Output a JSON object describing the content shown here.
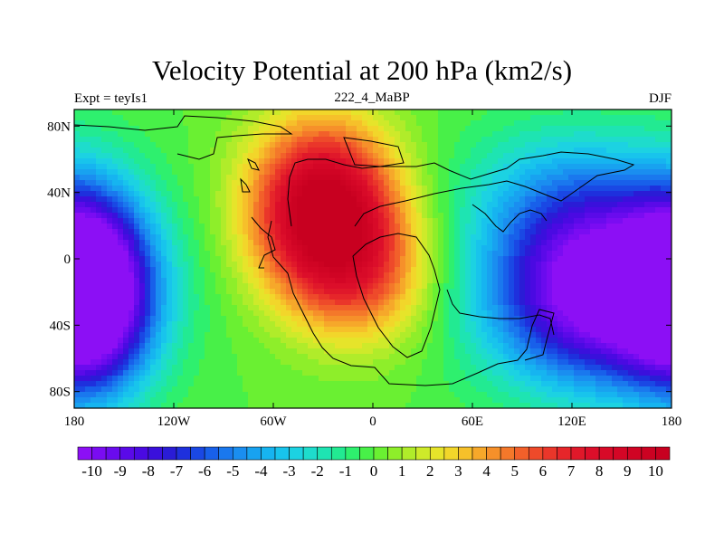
{
  "chart_data": {
    "type": "heatmap",
    "title": "Velocity Potential at 200 hPa (km2/s)",
    "left_label": "Expt = teyIs1",
    "center_label": "222_4_MaBP",
    "right_label": "DJF",
    "x_range": [
      -180,
      180
    ],
    "y_range": [
      -90,
      90
    ],
    "x_ticks": [
      {
        "value": -180,
        "label": "180"
      },
      {
        "value": -120,
        "label": "120W"
      },
      {
        "value": -60,
        "label": "60W"
      },
      {
        "value": 0,
        "label": "0"
      },
      {
        "value": 60,
        "label": "60E"
      },
      {
        "value": 120,
        "label": "120E"
      },
      {
        "value": 180,
        "label": "180"
      }
    ],
    "y_ticks": [
      {
        "value": 80,
        "label": "80N"
      },
      {
        "value": 40,
        "label": "40N"
      },
      {
        "value": 0,
        "label": "0"
      },
      {
        "value": -40,
        "label": "40S"
      },
      {
        "value": -80,
        "label": "80S"
      }
    ],
    "colorbar": {
      "min": -10.5,
      "max": 10.5,
      "step": 0.5,
      "tick_labels": [
        "-10",
        "-9",
        "-8",
        "-7",
        "-6",
        "-5",
        "-4",
        "-3",
        "-2",
        "-1",
        "0",
        "1",
        "2",
        "3",
        "4",
        "5",
        "6",
        "7",
        "8",
        "9",
        "10"
      ],
      "colors": [
        "#8c0ff5",
        "#7a0cf2",
        "#6a0bee",
        "#5a0ae8",
        "#4a0ae2",
        "#3a10dc",
        "#2a1cd6",
        "#1e30dd",
        "#1a48e4",
        "#1860ea",
        "#1a78ee",
        "#1a8ef0",
        "#18a2f0",
        "#16b4f0",
        "#18c4ec",
        "#1cd2e2",
        "#1edccc",
        "#1ee4b2",
        "#22ea92",
        "#2ef06e",
        "#48f048",
        "#6af032",
        "#8eee2a",
        "#b0ec2a",
        "#ceea2a",
        "#e6e42a",
        "#f2d62a",
        "#f6c02a",
        "#f6a82a",
        "#f6902a",
        "#f4782a",
        "#f2602a",
        "#ee4a2a",
        "#ea362a",
        "#e6262a",
        "#e0182a",
        "#dc0e2a",
        "#d80a28",
        "#d40626",
        "#d00424",
        "#cc0222",
        "#c80020"
      ]
    },
    "field": {
      "description": "Smoothed velocity potential field (km2/s): positive maximum over Atlantic/Africa, negative minima over central Pacific/Indian Ocean",
      "centers": [
        {
          "lon": -30,
          "lat": 30,
          "amplitude": 11,
          "sigma_lon": 30,
          "sigma_lat": 36
        },
        {
          "lon": -5,
          "lat": -10,
          "amplitude": 4,
          "sigma_lon": 30,
          "sigma_lat": 30
        },
        {
          "lon": 140,
          "lat": -20,
          "amplitude": -12,
          "sigma_lon": 48,
          "sigma_lat": 38
        },
        {
          "lon": -170,
          "lat": -20,
          "amplitude": -11,
          "sigma_lon": 25,
          "sigma_lat": 40
        },
        {
          "lon": 120,
          "lat": 40,
          "amplitude": -3,
          "sigma_lon": 45,
          "sigma_lat": 30
        }
      ]
    }
  }
}
